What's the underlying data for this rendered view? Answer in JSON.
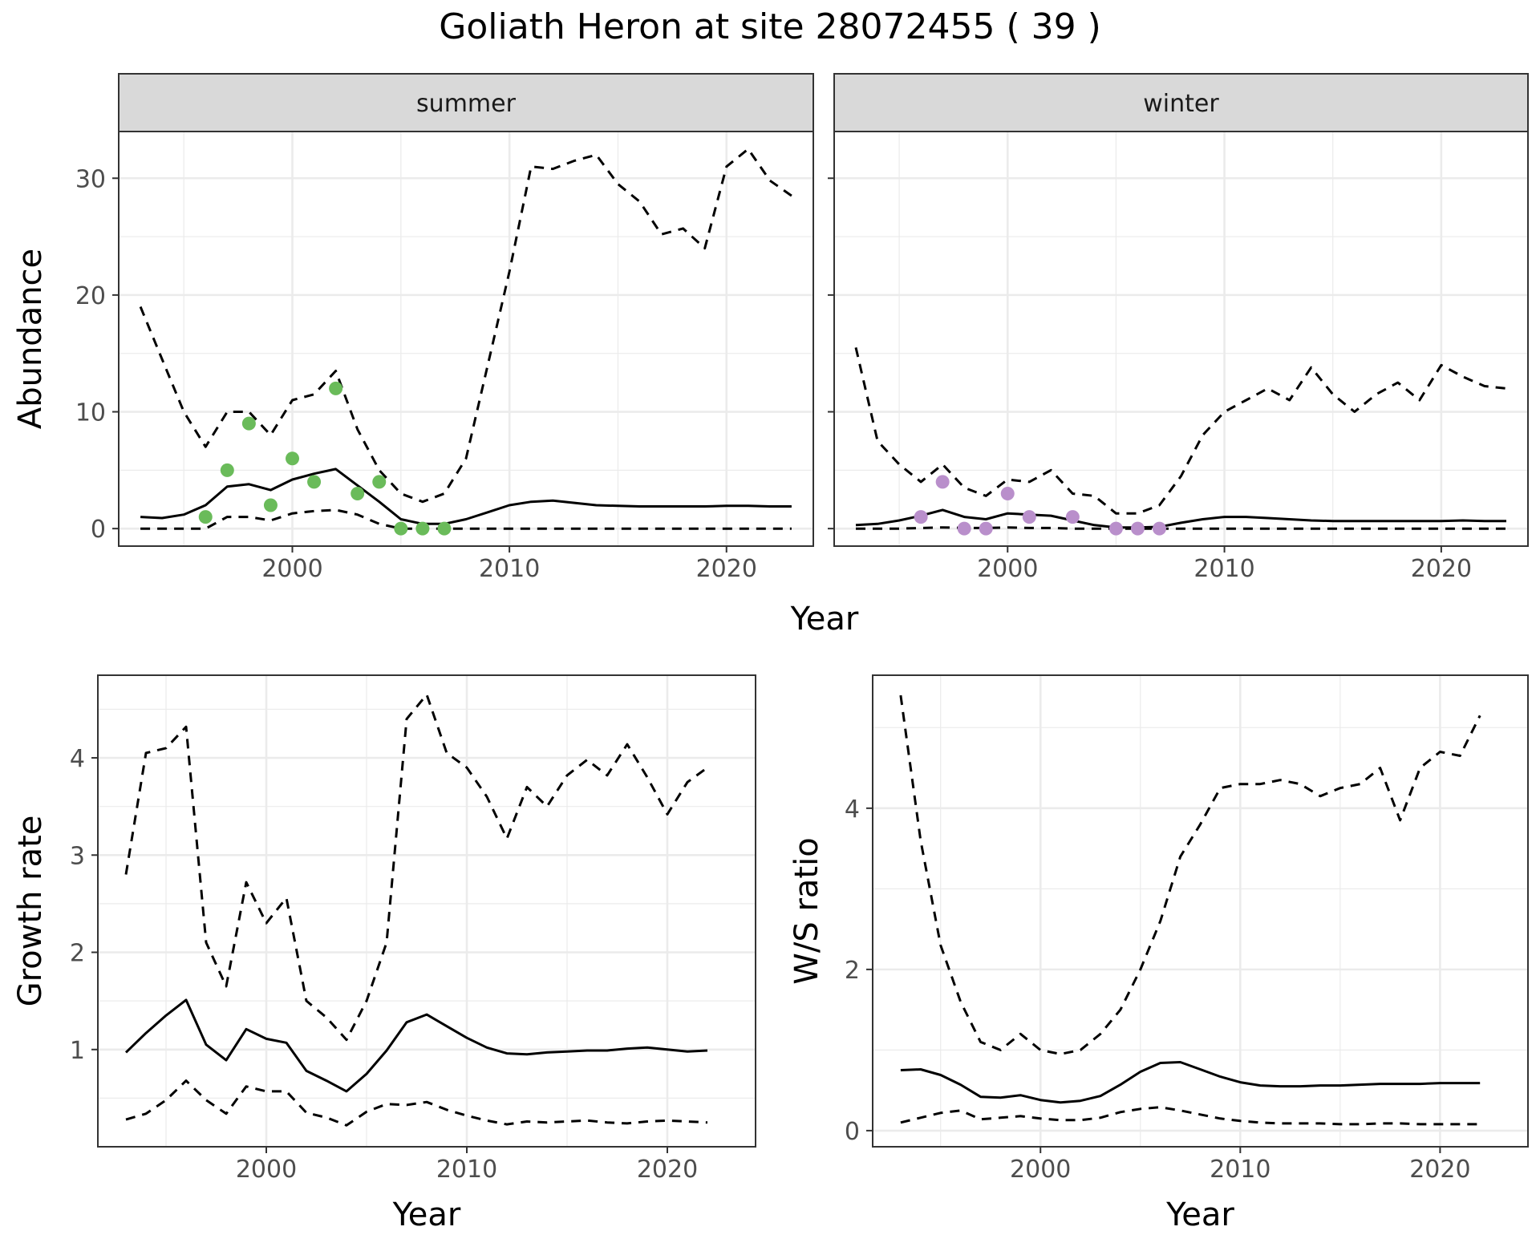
{
  "title": "Goliath Heron at site 28072455 ( 39 )",
  "top_xlabel": "Year",
  "colors": {
    "summer_points": "#6ABB5A",
    "winter_points": "#B98FCB",
    "strip_fill": "#D9D9D9",
    "line": "#000000",
    "grid": "#EBEBEB"
  },
  "chart_data": [
    {
      "type": "line",
      "panel": "summer",
      "strip_label": "summer",
      "ylabel": "Abundance",
      "xlabel": "Year",
      "xlim": [
        1992,
        2024
      ],
      "ylim": [
        -1.5,
        34
      ],
      "x_ticks": [
        2000,
        2010,
        2020
      ],
      "y_ticks": [
        0,
        10,
        20,
        30
      ],
      "x": [
        1993,
        1994,
        1995,
        1996,
        1997,
        1998,
        1999,
        2000,
        2001,
        2002,
        2003,
        2004,
        2005,
        2006,
        2007,
        2008,
        2009,
        2010,
        2011,
        2012,
        2013,
        2014,
        2015,
        2016,
        2017,
        2018,
        2019,
        2020,
        2021,
        2022,
        2023
      ],
      "series": [
        {
          "name": "",
          "style": "solid",
          "values": [
            1.0,
            0.9,
            1.2,
            2.0,
            3.6,
            3.8,
            3.3,
            4.2,
            4.7,
            5.1,
            3.7,
            2.3,
            0.8,
            0.4,
            0.4,
            0.8,
            1.4,
            2.0,
            2.3,
            2.4,
            2.2,
            2.0,
            1.95,
            1.9,
            1.9,
            1.9,
            1.9,
            1.95,
            1.95,
            1.9,
            1.9
          ]
        },
        {
          "name": "",
          "style": "dashed",
          "values": [
            19.0,
            14.5,
            10.0,
            7.0,
            10.0,
            10.0,
            8.0,
            11.0,
            11.5,
            13.5,
            8.5,
            5.0,
            3.0,
            2.3,
            3.0,
            6.0,
            14.0,
            22.0,
            31.0,
            30.8,
            31.5,
            32.0,
            29.5,
            28.0,
            25.2,
            25.7,
            24.0,
            31.0,
            32.5,
            29.8,
            28.5
          ]
        },
        {
          "name": "",
          "style": "dashed",
          "values": [
            0,
            0,
            0,
            0,
            1.0,
            1.0,
            0.7,
            1.3,
            1.5,
            1.6,
            1.2,
            0.4,
            0,
            0,
            0,
            0,
            0,
            0,
            0,
            0,
            0,
            0,
            0,
            0,
            0,
            0,
            0,
            0,
            0,
            0,
            0
          ]
        }
      ],
      "points": {
        "x": [
          1996,
          1997,
          1998,
          1999,
          2000,
          2001,
          2002,
          2003,
          2004,
          2005,
          2006,
          2007
        ],
        "y": [
          1,
          5,
          9,
          2,
          6,
          4,
          12,
          3,
          4,
          0,
          0,
          0
        ]
      }
    },
    {
      "type": "line",
      "panel": "winter",
      "strip_label": "winter",
      "ylabel": "",
      "xlabel": "Year",
      "xlim": [
        1992,
        2024
      ],
      "ylim": [
        -1.5,
        34
      ],
      "x_ticks": [
        2000,
        2010,
        2020
      ],
      "y_ticks": [
        0,
        10,
        20,
        30
      ],
      "x": [
        1993,
        1994,
        1995,
        1996,
        1997,
        1998,
        1999,
        2000,
        2001,
        2002,
        2003,
        2004,
        2005,
        2006,
        2007,
        2008,
        2009,
        2010,
        2011,
        2012,
        2013,
        2014,
        2015,
        2016,
        2017,
        2018,
        2019,
        2020,
        2021,
        2022,
        2023
      ],
      "series": [
        {
          "name": "",
          "style": "solid",
          "values": [
            0.3,
            0.4,
            0.7,
            1.1,
            1.6,
            1.0,
            0.8,
            1.3,
            1.2,
            1.1,
            0.7,
            0.3,
            0.1,
            0.1,
            0.15,
            0.5,
            0.8,
            1.0,
            1.0,
            0.9,
            0.8,
            0.7,
            0.65,
            0.65,
            0.65,
            0.65,
            0.65,
            0.65,
            0.7,
            0.65,
            0.65
          ]
        },
        {
          "name": "",
          "style": "dashed",
          "values": [
            15.5,
            7.5,
            5.5,
            4.0,
            5.5,
            3.5,
            2.8,
            4.2,
            4.0,
            5.0,
            3.0,
            2.8,
            1.3,
            1.3,
            2.0,
            4.5,
            8.0,
            10.0,
            11.0,
            12.0,
            11.0,
            13.8,
            11.5,
            10.0,
            11.5,
            12.5,
            11.0,
            14.0,
            13.0,
            12.2,
            12.0
          ]
        },
        {
          "name": "",
          "style": "dashed",
          "values": [
            0,
            0,
            0,
            0.05,
            0.1,
            0.05,
            0.05,
            0.1,
            0.05,
            0.05,
            0,
            0,
            0,
            0,
            0,
            0,
            0,
            0,
            0,
            0,
            0,
            0,
            0,
            0,
            0,
            0,
            0,
            0,
            0,
            0,
            0
          ]
        }
      ],
      "points": {
        "x": [
          1996,
          1997,
          1998,
          1999,
          2000,
          2001,
          2003,
          2005,
          2006,
          2007
        ],
        "y": [
          1,
          4,
          0,
          0,
          3,
          1,
          1,
          0,
          0,
          0
        ]
      }
    },
    {
      "type": "line",
      "panel": "growth",
      "ylabel": "Growth rate",
      "xlabel": "Year",
      "xlim": [
        1991.6,
        2024.4
      ],
      "ylim": [
        0.0,
        4.85
      ],
      "x_ticks": [
        2000,
        2010,
        2020
      ],
      "y_ticks": [
        1,
        2,
        3,
        4
      ],
      "x": [
        1993,
        1994,
        1995,
        1996,
        1997,
        1998,
        1999,
        2000,
        2001,
        2002,
        2003,
        2004,
        2005,
        2006,
        2007,
        2008,
        2009,
        2010,
        2011,
        2012,
        2013,
        2014,
        2015,
        2016,
        2017,
        2018,
        2019,
        2020,
        2021,
        2022
      ],
      "series": [
        {
          "name": "",
          "style": "solid",
          "values": [
            0.97,
            1.17,
            1.35,
            1.51,
            1.05,
            0.89,
            1.21,
            1.11,
            1.07,
            0.78,
            0.68,
            0.57,
            0.75,
            0.99,
            1.28,
            1.36,
            1.24,
            1.12,
            1.02,
            0.96,
            0.95,
            0.97,
            0.98,
            0.99,
            0.99,
            1.01,
            1.02,
            1.0,
            0.98,
            0.99
          ]
        },
        {
          "name": "",
          "style": "dashed",
          "values": [
            2.8,
            4.05,
            4.1,
            4.32,
            2.1,
            1.65,
            2.72,
            2.3,
            2.56,
            1.5,
            1.33,
            1.1,
            1.5,
            2.1,
            4.4,
            4.65,
            4.05,
            3.9,
            3.6,
            3.17,
            3.7,
            3.5,
            3.82,
            3.98,
            3.82,
            4.14,
            3.8,
            3.42,
            3.75,
            3.9
          ]
        },
        {
          "name": "",
          "style": "dashed",
          "values": [
            0.28,
            0.34,
            0.48,
            0.68,
            0.48,
            0.34,
            0.62,
            0.57,
            0.57,
            0.35,
            0.3,
            0.22,
            0.36,
            0.44,
            0.43,
            0.46,
            0.38,
            0.32,
            0.27,
            0.23,
            0.26,
            0.25,
            0.26,
            0.27,
            0.25,
            0.24,
            0.26,
            0.27,
            0.26,
            0.25
          ]
        }
      ]
    },
    {
      "type": "line",
      "panel": "ws",
      "ylabel": "W/S ratio",
      "xlabel": "Year",
      "xlim": [
        1991.6,
        2024.4
      ],
      "ylim": [
        -0.2,
        5.65
      ],
      "x_ticks": [
        2000,
        2010,
        2020
      ],
      "y_ticks": [
        0,
        2,
        4
      ],
      "x": [
        1993,
        1994,
        1995,
        1996,
        1997,
        1998,
        1999,
        2000,
        2001,
        2002,
        2003,
        2004,
        2005,
        2006,
        2007,
        2008,
        2009,
        2010,
        2011,
        2012,
        2013,
        2014,
        2015,
        2016,
        2017,
        2018,
        2019,
        2020,
        2021,
        2022
      ],
      "series": [
        {
          "name": "",
          "style": "solid",
          "values": [
            0.75,
            0.76,
            0.69,
            0.57,
            0.42,
            0.41,
            0.44,
            0.38,
            0.35,
            0.37,
            0.43,
            0.57,
            0.73,
            0.84,
            0.85,
            0.76,
            0.67,
            0.6,
            0.56,
            0.55,
            0.55,
            0.56,
            0.56,
            0.57,
            0.58,
            0.58,
            0.58,
            0.59,
            0.59,
            0.59
          ]
        },
        {
          "name": "",
          "style": "dashed",
          "values": [
            5.4,
            3.6,
            2.3,
            1.6,
            1.1,
            1.0,
            1.2,
            1.0,
            0.95,
            1.0,
            1.2,
            1.5,
            2.0,
            2.6,
            3.4,
            3.8,
            4.25,
            4.3,
            4.3,
            4.35,
            4.3,
            4.15,
            4.25,
            4.3,
            4.5,
            3.85,
            4.5,
            4.7,
            4.65,
            5.15
          ]
        },
        {
          "name": "",
          "style": "dashed",
          "values": [
            0.1,
            0.16,
            0.22,
            0.25,
            0.14,
            0.16,
            0.18,
            0.15,
            0.13,
            0.13,
            0.16,
            0.23,
            0.27,
            0.29,
            0.25,
            0.2,
            0.15,
            0.12,
            0.1,
            0.09,
            0.09,
            0.09,
            0.08,
            0.08,
            0.09,
            0.09,
            0.08,
            0.08,
            0.08,
            0.08
          ]
        }
      ]
    }
  ]
}
